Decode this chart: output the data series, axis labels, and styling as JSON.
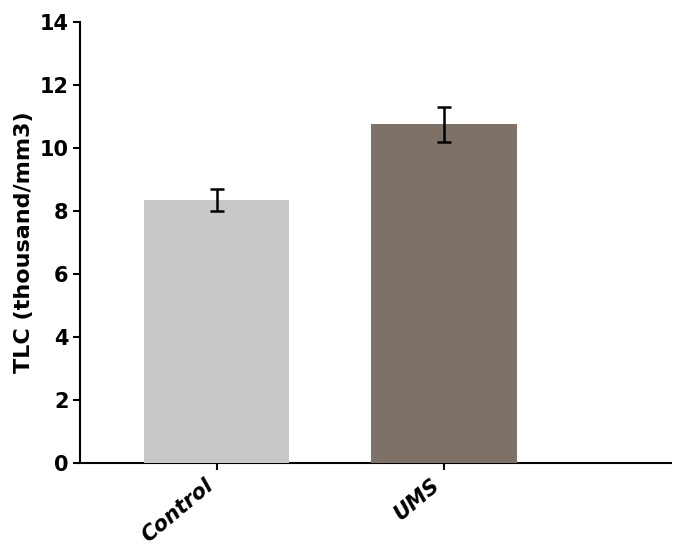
{
  "categories": [
    "Control",
    "UMS"
  ],
  "values": [
    8.35,
    10.75
  ],
  "errors": [
    0.35,
    0.55
  ],
  "bar_colors": [
    "#c8c8c8",
    "#7d7168"
  ],
  "bar_width": 0.32,
  "bar_positions": [
    0.25,
    0.75
  ],
  "ylabel": "TLC (thousand/mm3)",
  "ylim": [
    0,
    14
  ],
  "yticks": [
    0,
    2,
    4,
    6,
    8,
    10,
    12,
    14
  ],
  "ylabel_fontsize": 16,
  "tick_fontsize": 15,
  "xlabel_fontsize": 15,
  "background_color": "#ffffff",
  "error_capsize": 5,
  "error_linewidth": 1.8,
  "bar_edge_color": "none",
  "bar_linewidth": 0
}
